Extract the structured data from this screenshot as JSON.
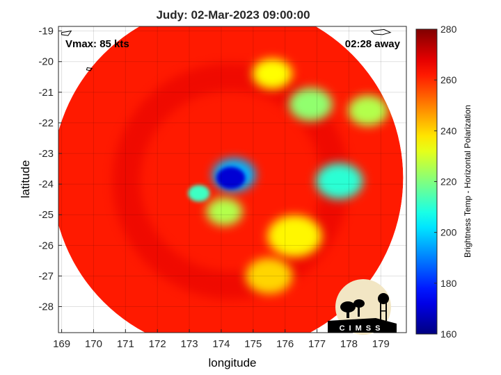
{
  "chart_data": {
    "type": "heatmap",
    "title": "Judy: 02-Mar-2023 09:00:00",
    "xlabel": "longitude",
    "ylabel": "latitude",
    "xlim": [
      168.9,
      179.8
    ],
    "ylim": [
      -28.85,
      -18.85
    ],
    "xticks": [
      169,
      170,
      171,
      172,
      173,
      174,
      175,
      176,
      177,
      178,
      179
    ],
    "yticks": [
      -19,
      -20,
      -21,
      -22,
      -23,
      -24,
      -25,
      -26,
      -27,
      -28
    ],
    "grid": true,
    "annotations": {
      "top_left": "Vmax: 85 kts",
      "top_right": "02:28 away"
    },
    "colorbar": {
      "label": "Brightness Temp - Horizontal Polarization",
      "range": [
        160,
        280
      ],
      "ticks": [
        280,
        260,
        240,
        220,
        200,
        180,
        160
      ],
      "colormap": "jet"
    },
    "swath": {
      "center": [
        174.2,
        -23.8
      ],
      "radius_deg": 5.5,
      "background_value": 262
    },
    "features": [
      {
        "name": "eyewall core",
        "lon": 174.3,
        "lat": -23.8,
        "value": 170
      },
      {
        "name": "core halo",
        "lon": 174.4,
        "lat": -23.7,
        "value": 196
      },
      {
        "name": "inner band west",
        "lon": 173.3,
        "lat": -24.3,
        "value": 212
      },
      {
        "name": "inner band south",
        "lon": 174.1,
        "lat": -24.9,
        "value": 226
      },
      {
        "name": "east band",
        "lon": 177.7,
        "lat": -23.9,
        "value": 210
      },
      {
        "name": "northeast band",
        "lon": 176.8,
        "lat": -21.4,
        "value": 222
      },
      {
        "name": "north band",
        "lon": 175.6,
        "lat": -20.4,
        "value": 235
      },
      {
        "name": "far east band",
        "lon": 178.6,
        "lat": -21.6,
        "value": 226
      },
      {
        "name": "southeast band",
        "lon": 176.3,
        "lat": -25.7,
        "value": 236
      },
      {
        "name": "south band",
        "lon": 175.5,
        "lat": -27.0,
        "value": 240
      }
    ],
    "coastline": [
      {
        "name": "islet north",
        "points": [
          [
            169.0,
            -19.05
          ],
          [
            169.3,
            -19.0
          ],
          [
            169.2,
            -19.15
          ],
          [
            169.0,
            -19.12
          ]
        ]
      },
      {
        "name": "islet west",
        "points": [
          [
            169.8,
            -20.2
          ],
          [
            169.95,
            -20.22
          ],
          [
            169.9,
            -20.3
          ],
          [
            169.78,
            -20.27
          ]
        ]
      },
      {
        "name": "islet northeast",
        "points": [
          [
            178.7,
            -19.0
          ],
          [
            179.1,
            -18.95
          ],
          [
            179.3,
            -19.05
          ],
          [
            179.05,
            -19.12
          ],
          [
            178.8,
            -19.1
          ]
        ]
      }
    ]
  },
  "logo": {
    "text": "CIMSS"
  }
}
